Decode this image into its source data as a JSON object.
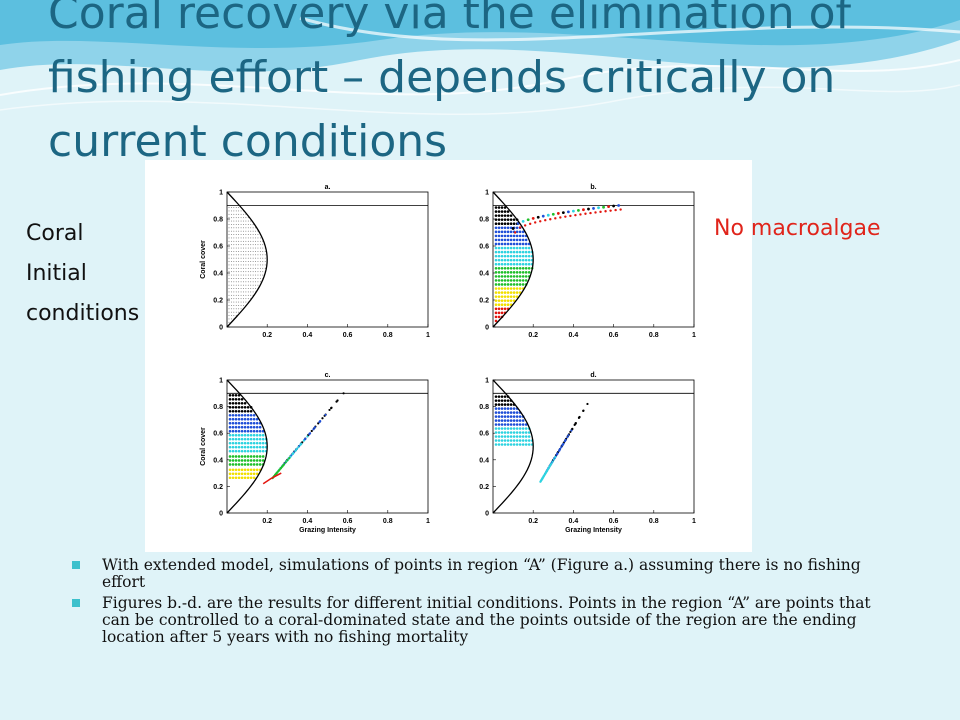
{
  "slide": {
    "title": "Coral recovery via the elimination of fishing effort – depends critically on current conditions",
    "left_label_lines": [
      "Coral",
      "Initial",
      "conditions"
    ],
    "right_label": "No macroalgae",
    "bullets": [
      "With extended model, simulations of points in region “A” (Figure a.) assuming there is no fishing effort",
      "Figures b.-d. are the results for different initial conditions. Points in the region “A” are points that can be controlled to a coral-dominated state and the points outside of the region are the ending location after 5 years with no fishing mortality"
    ],
    "colors": {
      "title": "#1c6683",
      "accent_red": "#e0241b",
      "bullet": "#3cc0cc"
    }
  },
  "chart_data": [
    {
      "type": "scatter",
      "title": "a.",
      "xlabel": "",
      "ylabel": "Coral cover",
      "xlim": [
        0,
        1
      ],
      "ylim": [
        0,
        1
      ],
      "xticks": [
        "0.2",
        "0.4",
        "0.6",
        "0.8",
        "1"
      ],
      "yticks": [
        "0",
        "0.2",
        "0.4",
        "0.6",
        "0.8",
        "1"
      ],
      "threshold_y": 0.9,
      "boundary": "curve from (0,1) to (0.2,0)",
      "series": [
        {
          "color": "#555555",
          "region": "A"
        }
      ]
    },
    {
      "type": "scatter",
      "title": "b.",
      "xlabel": "",
      "ylabel": "",
      "xlim": [
        0,
        1
      ],
      "ylim": [
        0,
        1
      ],
      "xticks": [
        "0.2",
        "0.4",
        "0.6",
        "0.8",
        "1"
      ],
      "yticks": [
        "0",
        "0.2",
        "0.4",
        "0.6",
        "0.8",
        "1"
      ],
      "threshold_y": 0.9,
      "bands": [
        {
          "color": "#000000",
          "y": [
            0.75,
            0.9
          ]
        },
        {
          "color": "#1f4fd8",
          "y": [
            0.6,
            0.75
          ]
        },
        {
          "color": "#2ed3e0",
          "y": [
            0.45,
            0.6
          ]
        },
        {
          "color": "#1fbf2a",
          "y": [
            0.3,
            0.45
          ]
        },
        {
          "color": "#f2e000",
          "y": [
            0.15,
            0.3
          ]
        },
        {
          "color": "#e3160f",
          "y": [
            0.0,
            0.15
          ]
        }
      ],
      "endpoints_x": [
        0.1,
        0.65
      ],
      "endpoints_y": [
        0.73,
        0.9
      ]
    },
    {
      "type": "scatter",
      "title": "c.",
      "xlabel": "Grazing Intensity",
      "ylabel": "Coral cover",
      "xlim": [
        0,
        1
      ],
      "ylim": [
        0,
        1
      ],
      "xticks": [
        "0.2",
        "0.4",
        "0.6",
        "0.8",
        "1"
      ],
      "yticks": [
        "0",
        "0.2",
        "0.4",
        "0.6",
        "0.8",
        "1"
      ],
      "threshold_y": 0.9,
      "bands": [
        {
          "color": "#000000",
          "y": [
            0.75,
            0.9
          ]
        },
        {
          "color": "#1f4fd8",
          "y": [
            0.6,
            0.75
          ]
        },
        {
          "color": "#2ed3e0",
          "y": [
            0.45,
            0.6
          ]
        },
        {
          "color": "#1fbf2a",
          "y": [
            0.35,
            0.45
          ]
        },
        {
          "color": "#f2e000",
          "y": [
            0.25,
            0.35
          ]
        }
      ],
      "fan_origin": [
        0.22,
        0.25
      ],
      "fan_x_end": 0.58,
      "fan_y_end": [
        0.4,
        0.9
      ]
    },
    {
      "type": "scatter",
      "title": "d.",
      "xlabel": "Grazing Intensity",
      "ylabel": "",
      "xlim": [
        0,
        1
      ],
      "ylim": [
        0,
        1
      ],
      "xticks": [
        "0.2",
        "0.4",
        "0.6",
        "0.8",
        "1"
      ],
      "yticks": [
        "0",
        "0.2",
        "0.4",
        "0.6",
        "0.8",
        "1"
      ],
      "threshold_y": 0.9,
      "bands": [
        {
          "color": "#000000",
          "y": [
            0.8,
            0.9
          ]
        },
        {
          "color": "#1f4fd8",
          "y": [
            0.65,
            0.8
          ]
        },
        {
          "color": "#2ed3e0",
          "y": [
            0.5,
            0.65
          ]
        }
      ],
      "fan_origin": [
        0.23,
        0.22
      ],
      "fan_x_end": 0.47,
      "fan_y_end": [
        0.4,
        0.82
      ]
    }
  ]
}
